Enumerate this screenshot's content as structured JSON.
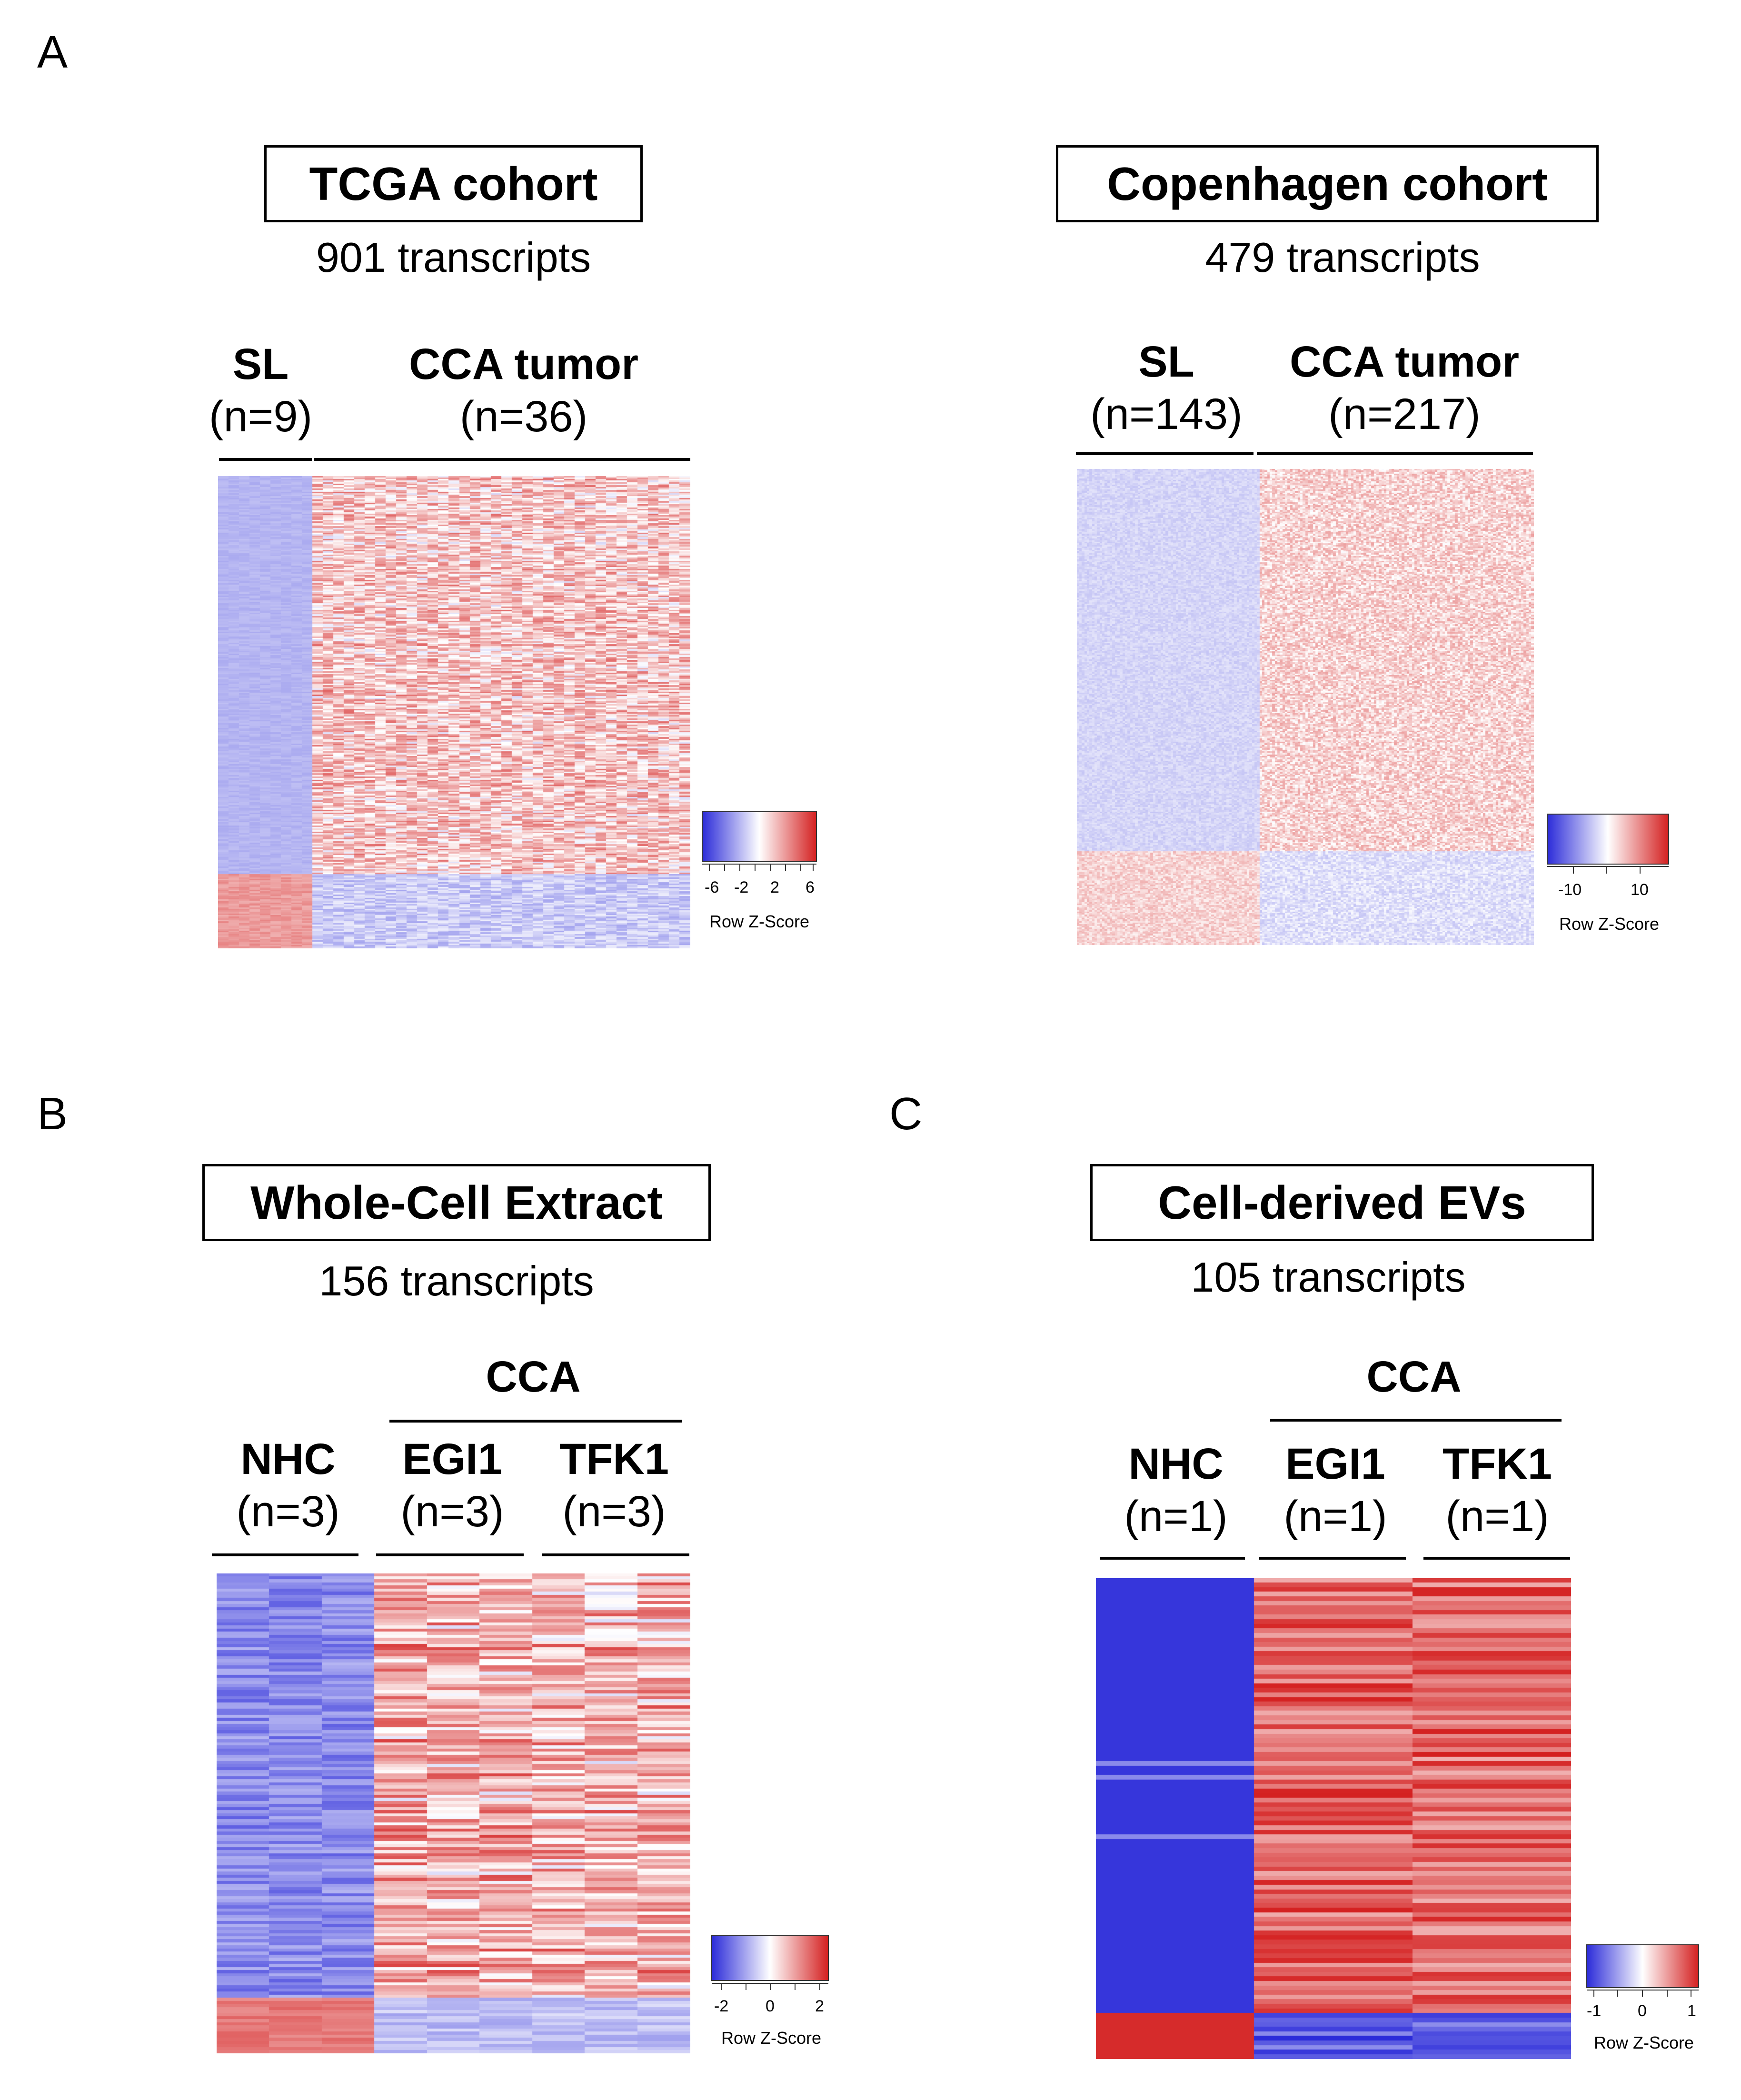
{
  "panels": {
    "A": {
      "letter": "A",
      "tcga": {
        "title": "TCGA cohort",
        "subtitle": "901 transcripts",
        "group1": {
          "name": "SL",
          "n": "(n=9)"
        },
        "group2": {
          "name": "CCA tumor",
          "n": "(n=36)"
        },
        "legend": {
          "ticks": [
            "-6",
            "-2",
            "2",
            "6"
          ],
          "title": "Row Z-Score"
        }
      },
      "copenhagen": {
        "title": "Copenhagen cohort",
        "subtitle": "479 transcripts",
        "group1": {
          "name": "SL",
          "n": "(n=143)"
        },
        "group2": {
          "name": "CCA tumor",
          "n": "(n=217)"
        },
        "legend": {
          "ticks": [
            "-10",
            "10"
          ],
          "title": "Row Z-Score"
        }
      }
    },
    "B": {
      "letter": "B",
      "title": "Whole-Cell Extract",
      "subtitle": "156 transcripts",
      "cca_label": "CCA",
      "group1": {
        "name": "NHC",
        "n": "(n=3)"
      },
      "group2": {
        "name": "EGI1",
        "n": "(n=3)"
      },
      "group3": {
        "name": "TFK1",
        "n": "(n=3)"
      },
      "legend": {
        "ticks": [
          "-2",
          "0",
          "2"
        ],
        "title": "Row Z-Score"
      }
    },
    "C": {
      "letter": "C",
      "title": "Cell-derived EVs",
      "subtitle": "105 transcripts",
      "cca_label": "CCA",
      "group1": {
        "name": "NHC",
        "n": "(n=1)"
      },
      "group2": {
        "name": "EGI1",
        "n": "(n=1)"
      },
      "group3": {
        "name": "TFK1",
        "n": "(n=1)"
      },
      "legend": {
        "ticks": [
          "-1",
          "0",
          "1"
        ],
        "title": "Row Z-Score"
      }
    }
  },
  "colors": {
    "low": "#2b2bd9",
    "mid": "#ffffff",
    "high": "#d42020"
  }
}
